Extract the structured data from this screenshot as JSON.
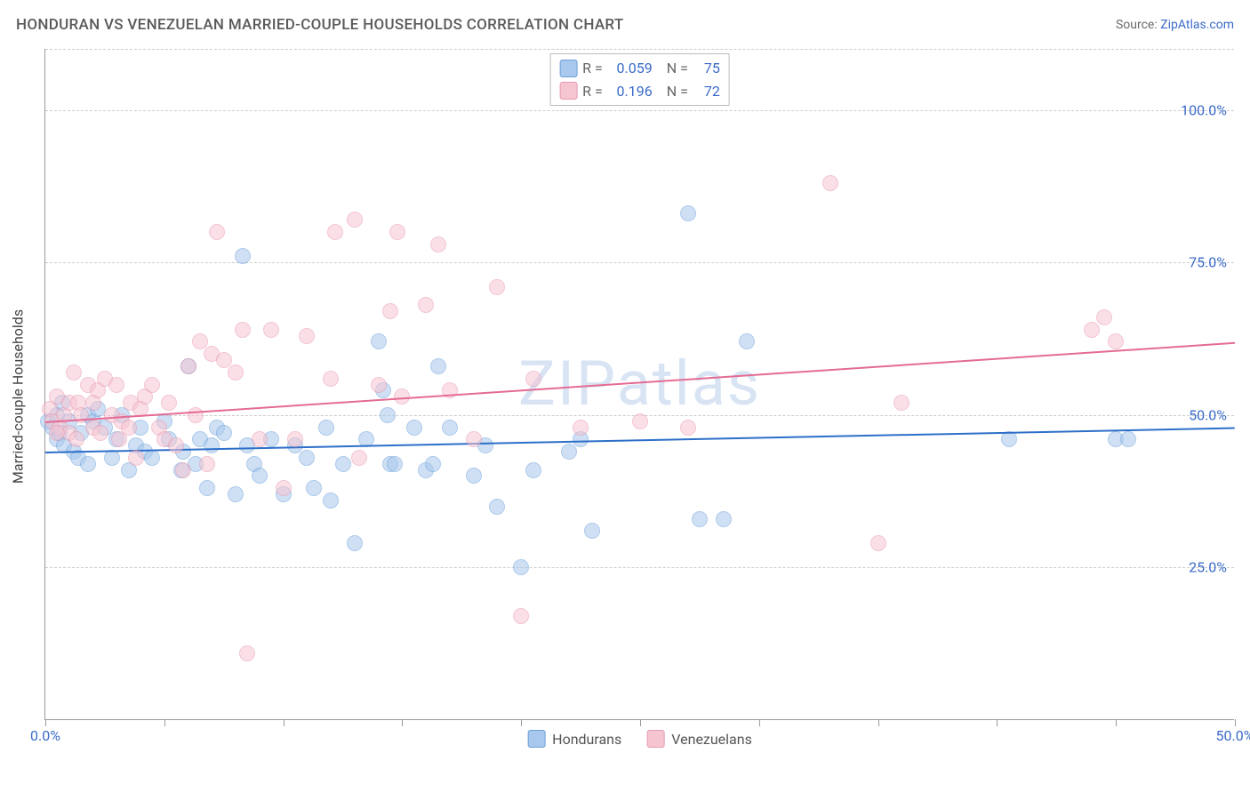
{
  "title": "HONDURAN VS VENEZUELAN MARRIED-COUPLE HOUSEHOLDS CORRELATION CHART",
  "source_label": "Source:",
  "source_link_text": "ZipAtlas.com",
  "watermark": "ZIPatlas",
  "y_axis_title": "Married-couple Households",
  "chart": {
    "type": "scatter",
    "xlim": [
      0,
      50
    ],
    "ylim": [
      0,
      110
    ],
    "x_ticks": [
      0,
      5,
      10,
      15,
      20,
      25,
      30,
      35,
      40,
      45,
      50
    ],
    "x_tick_labels": {
      "0": "0.0%",
      "50": "50.0%"
    },
    "y_gridlines": [
      25,
      50,
      75,
      100,
      110
    ],
    "y_tick_labels": {
      "25": "25.0%",
      "50": "50.0%",
      "75": "75.0%",
      "100": "100.0%"
    },
    "background_color": "#ffffff",
    "grid_color": "#cccccc",
    "axis_color": "#9a9a9a",
    "marker_radius": 9,
    "marker_opacity": 0.55,
    "series": [
      {
        "id": "hondurans",
        "label": "Hondurans",
        "fill": "#a8c8ed",
        "stroke": "#6b9fd8",
        "trend_color": "#2d6fc9",
        "trend": {
          "x1": 0,
          "y1": 44,
          "x2": 50,
          "y2": 48
        },
        "R": "0.059",
        "N": "75",
        "points": [
          [
            0.1,
            49
          ],
          [
            0.3,
            48
          ],
          [
            0.5,
            50
          ],
          [
            0.5,
            46
          ],
          [
            0.6,
            47
          ],
          [
            0.7,
            52
          ],
          [
            0.8,
            45
          ],
          [
            1.0,
            49
          ],
          [
            1.2,
            44
          ],
          [
            1.4,
            43
          ],
          [
            1.5,
            47
          ],
          [
            1.8,
            50
          ],
          [
            1.8,
            42
          ],
          [
            2.0,
            49
          ],
          [
            2.2,
            51
          ],
          [
            2.5,
            48
          ],
          [
            2.8,
            43
          ],
          [
            3.0,
            46
          ],
          [
            3.2,
            50
          ],
          [
            3.5,
            41
          ],
          [
            3.8,
            45
          ],
          [
            4.0,
            48
          ],
          [
            4.2,
            44
          ],
          [
            4.5,
            43
          ],
          [
            5.0,
            49
          ],
          [
            5.2,
            46
          ],
          [
            5.7,
            41
          ],
          [
            5.8,
            44
          ],
          [
            6.0,
            58
          ],
          [
            6.3,
            42
          ],
          [
            6.5,
            46
          ],
          [
            6.8,
            38
          ],
          [
            7.0,
            45
          ],
          [
            7.2,
            48
          ],
          [
            7.5,
            47
          ],
          [
            8.0,
            37
          ],
          [
            8.3,
            76
          ],
          [
            8.5,
            45
          ],
          [
            8.8,
            42
          ],
          [
            9.0,
            40
          ],
          [
            9.5,
            46
          ],
          [
            10.0,
            37
          ],
          [
            10.5,
            45
          ],
          [
            11.0,
            43
          ],
          [
            11.3,
            38
          ],
          [
            11.8,
            48
          ],
          [
            12.0,
            36
          ],
          [
            12.5,
            42
          ],
          [
            13.0,
            29
          ],
          [
            13.5,
            46
          ],
          [
            14.0,
            62
          ],
          [
            14.2,
            54
          ],
          [
            14.4,
            50
          ],
          [
            14.5,
            42
          ],
          [
            14.7,
            42
          ],
          [
            15.5,
            48
          ],
          [
            16.0,
            41
          ],
          [
            16.3,
            42
          ],
          [
            16.5,
            58
          ],
          [
            17.0,
            48
          ],
          [
            18.0,
            40
          ],
          [
            18.5,
            45
          ],
          [
            19.0,
            35
          ],
          [
            20.0,
            25
          ],
          [
            20.5,
            41
          ],
          [
            22.0,
            44
          ],
          [
            22.5,
            46
          ],
          [
            23.0,
            31
          ],
          [
            27.0,
            83
          ],
          [
            27.5,
            33
          ],
          [
            28.5,
            33
          ],
          [
            29.5,
            62
          ],
          [
            40.5,
            46
          ],
          [
            45.0,
            46
          ],
          [
            45.5,
            46
          ]
        ]
      },
      {
        "id": "venezuelans",
        "label": "Venezuelans",
        "fill": "#f6c5d2",
        "stroke": "#e898b1",
        "trend_color": "#e56b93",
        "trend": {
          "x1": 0,
          "y1": 49,
          "x2": 50,
          "y2": 62
        },
        "R": "0.196",
        "N": "72",
        "points": [
          [
            0.2,
            51
          ],
          [
            0.3,
            49
          ],
          [
            0.5,
            53
          ],
          [
            0.6,
            48
          ],
          [
            0.8,
            50
          ],
          [
            1.0,
            52
          ],
          [
            1.0,
            47
          ],
          [
            1.2,
            57
          ],
          [
            1.4,
            52
          ],
          [
            1.5,
            50
          ],
          [
            1.8,
            55
          ],
          [
            2.0,
            48
          ],
          [
            2.0,
            52
          ],
          [
            2.2,
            54
          ],
          [
            2.5,
            56
          ],
          [
            2.8,
            50
          ],
          [
            3.0,
            55
          ],
          [
            3.2,
            49
          ],
          [
            3.5,
            48
          ],
          [
            3.6,
            52
          ],
          [
            3.8,
            43
          ],
          [
            4.0,
            51
          ],
          [
            4.2,
            53
          ],
          [
            4.5,
            55
          ],
          [
            4.8,
            48
          ],
          [
            5.0,
            46
          ],
          [
            5.2,
            52
          ],
          [
            5.5,
            45
          ],
          [
            5.8,
            41
          ],
          [
            6.0,
            58
          ],
          [
            6.3,
            50
          ],
          [
            6.5,
            62
          ],
          [
            6.8,
            42
          ],
          [
            7.0,
            60
          ],
          [
            7.2,
            80
          ],
          [
            7.5,
            59
          ],
          [
            8.0,
            57
          ],
          [
            8.3,
            64
          ],
          [
            8.5,
            11
          ],
          [
            9.0,
            46
          ],
          [
            9.5,
            64
          ],
          [
            10.0,
            38
          ],
          [
            10.5,
            46
          ],
          [
            11.0,
            63
          ],
          [
            12.0,
            56
          ],
          [
            12.2,
            80
          ],
          [
            13.0,
            82
          ],
          [
            13.2,
            43
          ],
          [
            14.0,
            55
          ],
          [
            14.5,
            67
          ],
          [
            14.8,
            80
          ],
          [
            15.0,
            53
          ],
          [
            16.0,
            68
          ],
          [
            16.5,
            78
          ],
          [
            17.0,
            54
          ],
          [
            18.0,
            46
          ],
          [
            19.0,
            71
          ],
          [
            20.0,
            17
          ],
          [
            20.5,
            56
          ],
          [
            22.5,
            48
          ],
          [
            25.0,
            49
          ],
          [
            27.0,
            48
          ],
          [
            33.0,
            88
          ],
          [
            35.0,
            29
          ],
          [
            36.0,
            52
          ],
          [
            44.0,
            64
          ],
          [
            44.5,
            66
          ],
          [
            45.0,
            62
          ],
          [
            0.5,
            47
          ],
          [
            1.3,
            46
          ],
          [
            2.3,
            47
          ],
          [
            3.1,
            46
          ]
        ]
      }
    ]
  }
}
